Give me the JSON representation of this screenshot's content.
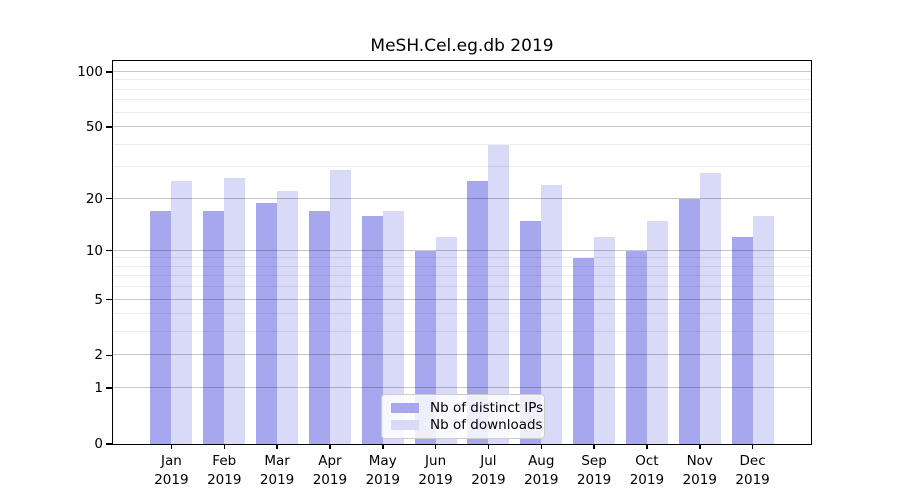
{
  "chart_data": {
    "type": "bar",
    "title": "MeSH.Cel.eg.db 2019",
    "categories": [
      "Jan",
      "Feb",
      "Mar",
      "Apr",
      "May",
      "Jun",
      "Jul",
      "Aug",
      "Sep",
      "Oct",
      "Nov",
      "Dec"
    ],
    "year_label": "2019",
    "series": [
      {
        "name": "Nb of distinct IPs",
        "color": "#a7a7ef",
        "values": [
          17,
          17,
          19,
          17,
          16,
          10,
          25,
          15,
          9,
          10,
          20,
          12
        ]
      },
      {
        "name": "Nb of downloads",
        "color": "#d9d9f8",
        "values": [
          25,
          26,
          22,
          29,
          17,
          12,
          40,
          24,
          12,
          15,
          28,
          16
        ]
      }
    ],
    "yscale": "log1p",
    "ylim": [
      0,
      116
    ],
    "y_major_ticks": [
      0,
      1,
      2,
      5,
      10,
      20,
      50,
      100
    ],
    "y_minor_ticks": [
      3,
      4,
      6,
      7,
      8,
      9,
      30,
      40,
      60,
      70,
      80,
      90
    ],
    "grid": true,
    "legend_position": "bottom-center",
    "axis_color": "#000000",
    "gridline_major_color": "#c9c9c9",
    "gridline_minor_color": "#ececec"
  }
}
